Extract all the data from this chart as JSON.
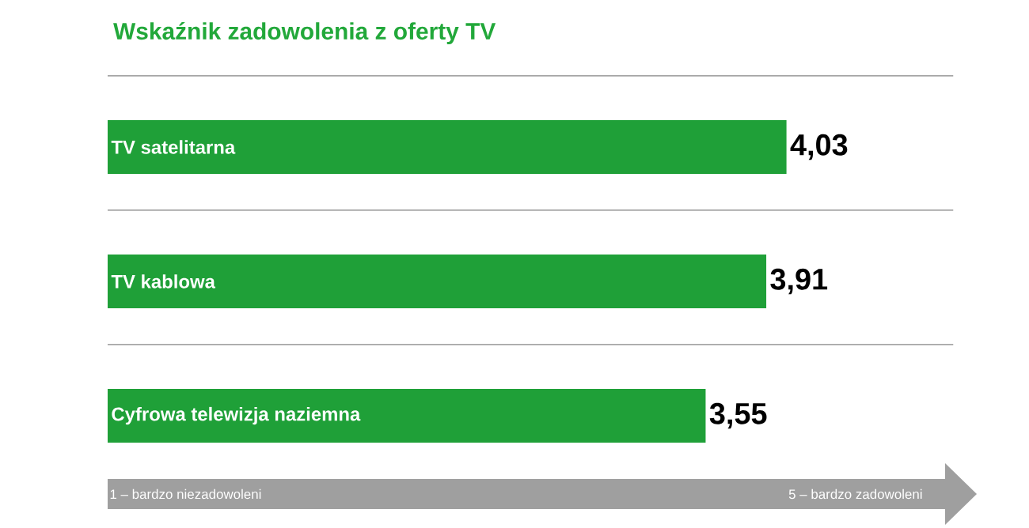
{
  "chart_data": {
    "type": "bar",
    "orientation": "horizontal",
    "title": "Wskaźnik zadowolenia z oferty TV",
    "categories": [
      "TV satelitarna",
      "TV kablowa",
      "Cyfrowa telewizja naziemna"
    ],
    "values": [
      4.03,
      3.91,
      3.55
    ],
    "value_labels": [
      "4,03",
      "3,91",
      "3,55"
    ],
    "color": "#1fa038",
    "xlim": [
      0,
      5
    ],
    "annotations": [
      "1 – bardzo niezadowoleni",
      "5 – bardzo zadowoleni"
    ]
  }
}
